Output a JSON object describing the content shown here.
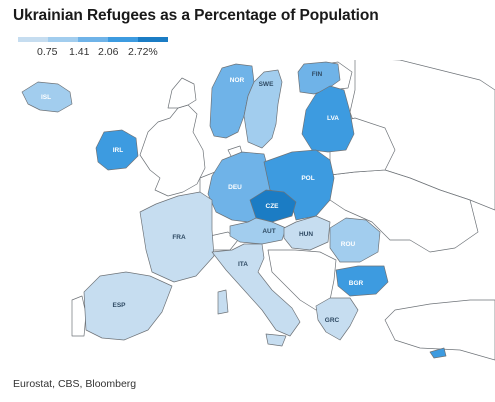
{
  "title": "Ukrainian Refugees as a Percentage of Population",
  "legend": {
    "ticks": [
      "0.75",
      "1.41",
      "2.06",
      "2.72%"
    ],
    "colors": [
      "#c6ddf0",
      "#a2cdee",
      "#6fb3e8",
      "#3d9be0",
      "#1b7cc4"
    ]
  },
  "colors": {
    "no_data": "#ffffff",
    "border": "#6e7378"
  },
  "countries": [
    {
      "code": "ISL",
      "level": 1
    },
    {
      "code": "IRL",
      "level": 3
    },
    {
      "code": "NOR",
      "level": 2
    },
    {
      "code": "SWE",
      "level": 1
    },
    {
      "code": "FIN",
      "level": 2
    },
    {
      "code": "LVA",
      "level": 3
    },
    {
      "code": "DEU",
      "level": 2
    },
    {
      "code": "POL",
      "level": 3
    },
    {
      "code": "CZE",
      "level": 4
    },
    {
      "code": "AUT",
      "level": 1
    },
    {
      "code": "HUN",
      "level": 0
    },
    {
      "code": "FRA",
      "level": 0
    },
    {
      "code": "ITA",
      "level": 0
    },
    {
      "code": "ESP",
      "level": 0
    },
    {
      "code": "ROU",
      "level": 1
    },
    {
      "code": "BGR",
      "level": 3
    },
    {
      "code": "GRC",
      "level": 0
    }
  ],
  "source": "Eurostat, CBS, Bloomberg"
}
